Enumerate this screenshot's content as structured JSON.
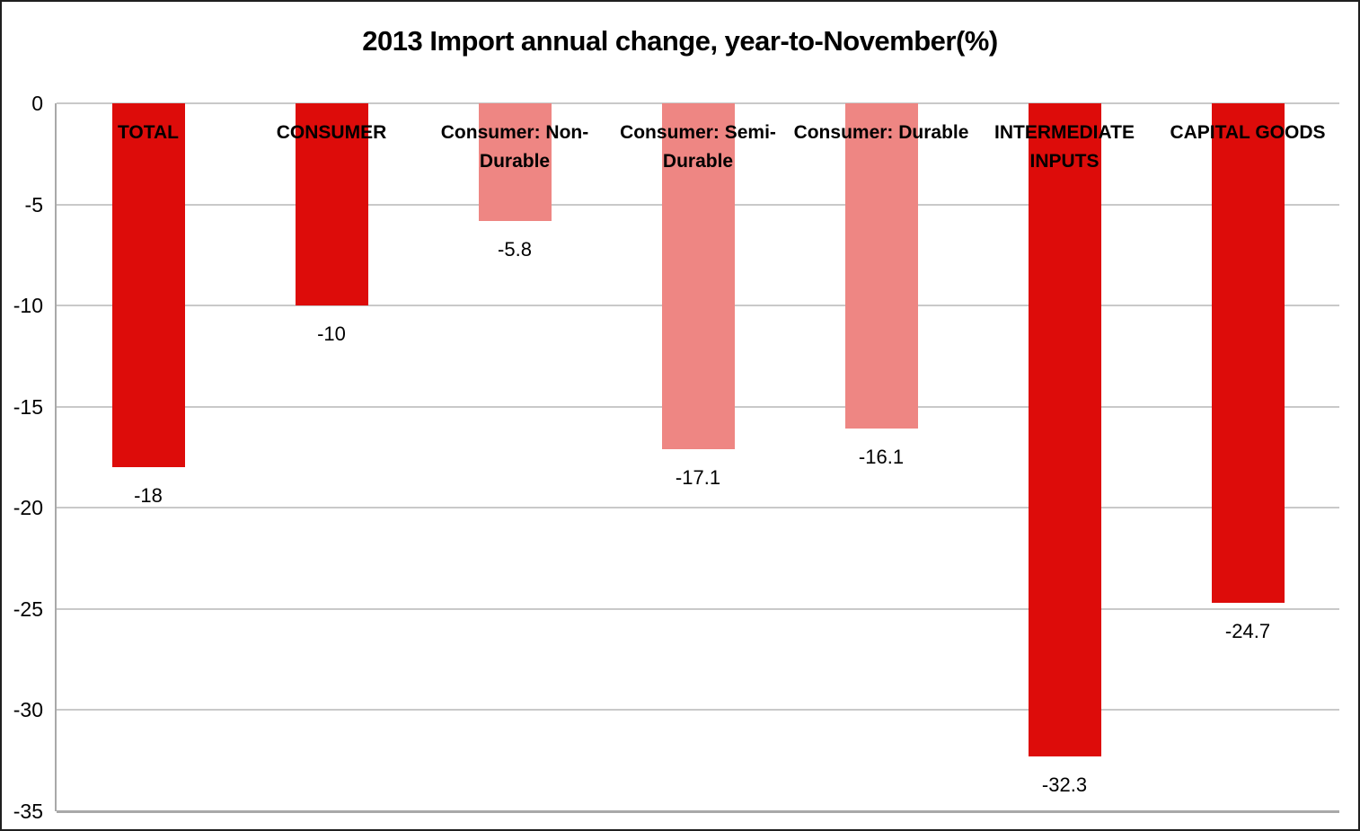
{
  "title": "2013 Import annual change, year-to-November(%)",
  "chart_data": {
    "type": "bar",
    "title": "2013 Import annual change, year-to-November(%)",
    "categories": [
      "TOTAL",
      "CONSUMER",
      "Consumer: Non-Durable",
      "Consumer: Semi-Durable",
      "Consumer: Durable",
      "INTERMEDIATE INPUTS",
      "CAPITAL GOODS"
    ],
    "category_lines": [
      [
        "TOTAL"
      ],
      [
        "CONSUMER"
      ],
      [
        "Consumer: Non-",
        "Durable"
      ],
      [
        "Consumer: Semi-",
        "Durable"
      ],
      [
        "Consumer: Durable"
      ],
      [
        "INTERMEDIATE",
        "INPUTS"
      ],
      [
        "CAPITAL GOODS"
      ]
    ],
    "values": [
      -18,
      -10,
      -5.8,
      -17.1,
      -16.1,
      -32.3,
      -24.7
    ],
    "value_labels": [
      "-18",
      "-10",
      "-5.8",
      "-17.1",
      "-16.1",
      "-32.3",
      "-24.7"
    ],
    "bar_colors": [
      "#dd0c0a",
      "#dd0c0a",
      "#ee8683",
      "#ee8683",
      "#ee8683",
      "#dd0c0a",
      "#dd0c0a"
    ],
    "xlabel": "",
    "ylabel": "",
    "ylim": [
      -35,
      0
    ],
    "yticks": [
      0,
      -5,
      -10,
      -15,
      -20,
      -25,
      -30,
      -35
    ],
    "ytick_labels": [
      "0",
      "-5",
      "-10",
      "-15",
      "-20",
      "-25",
      "-30",
      "-35"
    ],
    "grid": true,
    "legend": false,
    "category_label_position": "top",
    "value_label_position": "outside-end"
  },
  "colors": {
    "bar_dark": "#dd0c0a",
    "bar_light": "#ee8683",
    "gridline": "#c9c9c9",
    "axis_line": "#a9a9a9",
    "text": "#000000",
    "background": "#ffffff",
    "figure_border": "#1f1f1f"
  }
}
